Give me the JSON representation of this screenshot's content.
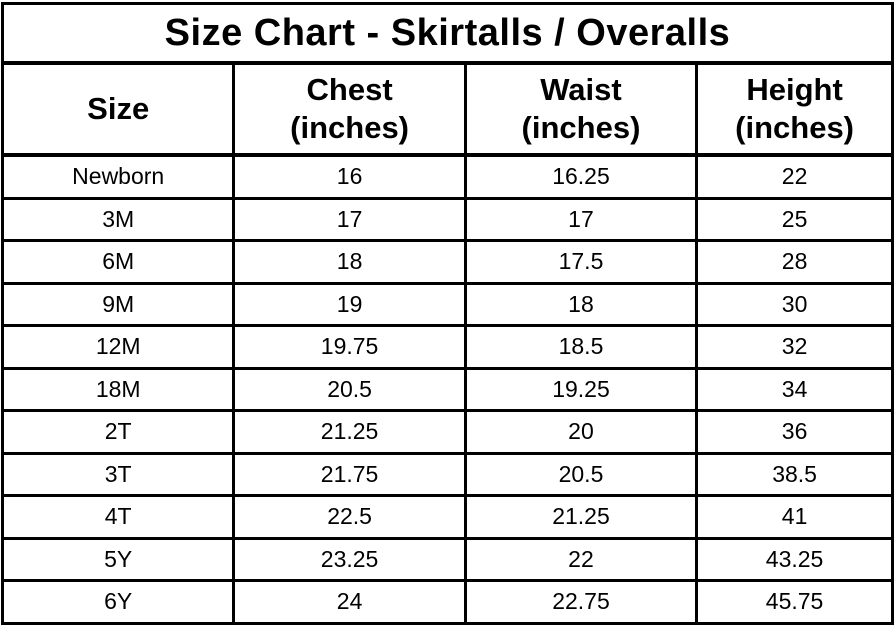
{
  "title": "Size Chart - Skirtalls / Overalls",
  "table": {
    "headers": [
      {
        "key": "size",
        "line1": "Size",
        "line2": ""
      },
      {
        "key": "chest",
        "line1": "Chest",
        "line2": "(inches)"
      },
      {
        "key": "waist",
        "line1": "Waist",
        "line2": "(inches)"
      },
      {
        "key": "height",
        "line1": "Height",
        "line2": "(inches)"
      }
    ]
  },
  "chart_data": {
    "type": "table",
    "title": "Size Chart - Skirtalls / Overalls",
    "columns": [
      "Size",
      "Chest (inches)",
      "Waist (inches)",
      "Height (inches)"
    ],
    "rows": [
      [
        "Newborn",
        "16",
        "16.25",
        "22"
      ],
      [
        "3M",
        "17",
        "17",
        "25"
      ],
      [
        "6M",
        "18",
        "17.5",
        "28"
      ],
      [
        "9M",
        "19",
        "18",
        "30"
      ],
      [
        "12M",
        "19.75",
        "18.5",
        "32"
      ],
      [
        "18M",
        "20.5",
        "19.25",
        "34"
      ],
      [
        "2T",
        "21.25",
        "20",
        "36"
      ],
      [
        "3T",
        "21.75",
        "20.5",
        "38.5"
      ],
      [
        "4T",
        "22.5",
        "21.25",
        "41"
      ],
      [
        "5Y",
        "23.25",
        "22",
        "43.25"
      ],
      [
        "6Y",
        "24",
        "22.75",
        "45.75"
      ]
    ]
  },
  "colors": {
    "border": "#000000",
    "background": "#ffffff",
    "text": "#000000"
  }
}
